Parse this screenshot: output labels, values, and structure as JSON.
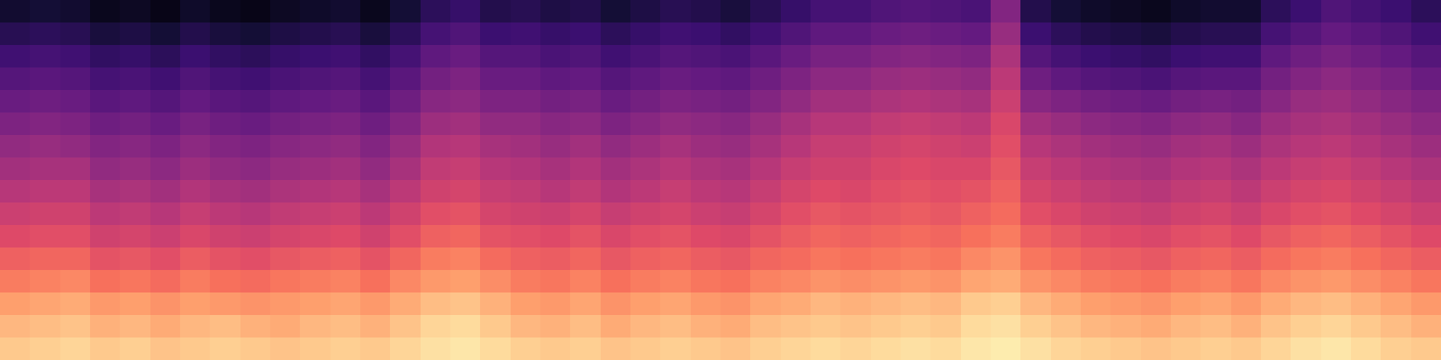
{
  "chart_data": {
    "type": "heatmap",
    "tick_labels": false,
    "zlim": [
      -80,
      0
    ],
    "cells": [
      [
        -9,
        -8,
        -7,
        -9,
        -8,
        -10,
        -9,
        -8,
        -9,
        -10,
        -9,
        -8,
        -9,
        -7,
        -5,
        -4,
        -6,
        -8,
        -9,
        -8,
        -10,
        -9,
        -8,
        -9,
        -10,
        -8,
        -7,
        -6,
        -7,
        -6,
        -5,
        -6,
        -4,
        -3,
        -5,
        -7,
        -8,
        -9,
        -10,
        -9,
        -8,
        -9,
        -7,
        -5,
        -4,
        -6,
        -8,
        -9
      ],
      [
        -12,
        -11,
        -10,
        -13,
        -12,
        -14,
        -12,
        -11,
        -13,
        -14,
        -12,
        -11,
        -13,
        -10,
        -7,
        -6,
        -9,
        -12,
        -13,
        -11,
        -14,
        -12,
        -11,
        -13,
        -14,
        -11,
        -10,
        -9,
        -10,
        -9,
        -8,
        -9,
        -6,
        -5,
        -8,
        -10,
        -12,
        -13,
        -14,
        -12,
        -11,
        -13,
        -10,
        -8,
        -7,
        -9,
        -11,
        -13
      ],
      [
        -16,
        -15,
        -14,
        -17,
        -16,
        -18,
        -16,
        -17,
        -18,
        -17,
        -16,
        -15,
        -17,
        -14,
        -11,
        -10,
        -13,
        -16,
        -17,
        -15,
        -18,
        -16,
        -15,
        -17,
        -18,
        -15,
        -14,
        -12,
        -13,
        -12,
        -11,
        -12,
        -9,
        -8,
        -12,
        -14,
        -16,
        -17,
        -18,
        -16,
        -15,
        -17,
        -14,
        -12,
        -11,
        -13,
        -15,
        -17
      ],
      [
        -22,
        -21,
        -20,
        -24,
        -23,
        -25,
        -22,
        -24,
        -25,
        -23,
        -22,
        -21,
        -24,
        -20,
        -17,
        -16,
        -19,
        -22,
        -23,
        -21,
        -24,
        -22,
        -21,
        -23,
        -24,
        -21,
        -20,
        -18,
        -19,
        -18,
        -17,
        -18,
        -15,
        -14,
        -18,
        -20,
        -22,
        -23,
        -24,
        -22,
        -21,
        -23,
        -20,
        -18,
        -17,
        -19,
        -21,
        -23
      ],
      [
        -27,
        -26,
        -26,
        -30,
        -29,
        -31,
        -28,
        -30,
        -31,
        -29,
        -28,
        -27,
        -30,
        -26,
        -22,
        -21,
        -25,
        -27,
        -28,
        -26,
        -29,
        -27,
        -26,
        -28,
        -29,
        -26,
        -25,
        -23,
        -24,
        -23,
        -22,
        -23,
        -20,
        -18,
        -23,
        -25,
        -27,
        -28,
        -29,
        -27,
        -26,
        -28,
        -25,
        -23,
        -22,
        -24,
        -26,
        -28
      ],
      [
        -32,
        -31,
        -31,
        -35,
        -34,
        -36,
        -33,
        -35,
        -36,
        -34,
        -33,
        -32,
        -35,
        -31,
        -27,
        -26,
        -30,
        -31,
        -32,
        -30,
        -33,
        -31,
        -30,
        -32,
        -33,
        -30,
        -28,
        -26,
        -27,
        -26,
        -25,
        -26,
        -24,
        -22,
        -27,
        -29,
        -31,
        -32,
        -33,
        -31,
        -30,
        -32,
        -29,
        -27,
        -26,
        -28,
        -30,
        -32
      ],
      [
        -36,
        -35,
        -35,
        -39,
        -38,
        -40,
        -37,
        -39,
        -40,
        -38,
        -37,
        -36,
        -39,
        -35,
        -31,
        -30,
        -34,
        -35,
        -36,
        -34,
        -37,
        -35,
        -34,
        -36,
        -37,
        -34,
        -31,
        -29,
        -30,
        -29,
        -28,
        -29,
        -27,
        -25,
        -31,
        -33,
        -35,
        -36,
        -37,
        -35,
        -34,
        -36,
        -33,
        -31,
        -30,
        -32,
        -34,
        -36
      ],
      [
        -40,
        -39,
        -39,
        -43,
        -42,
        -44,
        -41,
        -43,
        -44,
        -42,
        -41,
        -40,
        -43,
        -39,
        -35,
        -34,
        -37,
        -38,
        -40,
        -38,
        -41,
        -39,
        -37,
        -39,
        -40,
        -37,
        -34,
        -32,
        -33,
        -31,
        -30,
        -31,
        -30,
        -27,
        -34,
        -36,
        -38,
        -39,
        -40,
        -38,
        -37,
        -39,
        -36,
        -34,
        -33,
        -35,
        -37,
        -39
      ],
      [
        -44,
        -43,
        -43,
        -47,
        -46,
        -48,
        -45,
        -47,
        -48,
        -46,
        -45,
        -44,
        -47,
        -43,
        -38,
        -37,
        -40,
        -41,
        -43,
        -41,
        -44,
        -42,
        -40,
        -42,
        -43,
        -40,
        -37,
        -35,
        -35,
        -33,
        -32,
        -33,
        -33,
        -29,
        -37,
        -39,
        -41,
        -42,
        -43,
        -41,
        -40,
        -42,
        -39,
        -37,
        -36,
        -38,
        -40,
        -42
      ],
      [
        -47,
        -46,
        -47,
        -50,
        -49,
        -51,
        -48,
        -50,
        -51,
        -49,
        -48,
        -47,
        -50,
        -46,
        -41,
        -40,
        -43,
        -44,
        -46,
        -44,
        -47,
        -45,
        -43,
        -45,
        -46,
        -43,
        -40,
        -37,
        -37,
        -35,
        -34,
        -35,
        -36,
        -31,
        -40,
        -42,
        -44,
        -45,
        -46,
        -44,
        -43,
        -45,
        -42,
        -40,
        -39,
        -41,
        -43,
        -45
      ],
      [
        -51,
        -50,
        -51,
        -54,
        -53,
        -55,
        -52,
        -54,
        -55,
        -53,
        -52,
        -51,
        -54,
        -50,
        -45,
        -44,
        -47,
        -47,
        -49,
        -48,
        -51,
        -49,
        -47,
        -48,
        -49,
        -46,
        -43,
        -40,
        -40,
        -38,
        -37,
        -38,
        -39,
        -33,
        -44,
        -46,
        -48,
        -49,
        -50,
        -48,
        -47,
        -49,
        -45,
        -43,
        -42,
        -44,
        -46,
        -48
      ],
      [
        -55,
        -54,
        -55,
        -58,
        -57,
        -59,
        -56,
        -58,
        -59,
        -57,
        -56,
        -55,
        -58,
        -54,
        -49,
        -48,
        -51,
        -51,
        -53,
        -52,
        -55,
        -53,
        -51,
        -52,
        -53,
        -50,
        -47,
        -44,
        -44,
        -42,
        -41,
        -42,
        -43,
        -36,
        -49,
        -51,
        -53,
        -54,
        -55,
        -53,
        -52,
        -53,
        -49,
        -46,
        -45,
        -47,
        -49,
        -51
      ],
      [
        -59,
        -58,
        -59,
        -62,
        -61,
        -63,
        -60,
        -62,
        -63,
        -61,
        -60,
        -59,
        -62,
        -58,
        -53,
        -51,
        -55,
        -55,
        -57,
        -56,
        -59,
        -57,
        -55,
        -56,
        -57,
        -54,
        -51,
        -48,
        -48,
        -46,
        -45,
        -46,
        -47,
        -39,
        -54,
        -57,
        -59,
        -60,
        -61,
        -59,
        -58,
        -58,
        -53,
        -50,
        -48,
        -50,
        -52,
        -55
      ],
      [
        -63,
        -62,
        -63,
        -66,
        -65,
        -67,
        -64,
        -66,
        -67,
        -65,
        -64,
        -63,
        -66,
        -62,
        -57,
        -55,
        -59,
        -59,
        -61,
        -60,
        -63,
        -61,
        -59,
        -60,
        -61,
        -58,
        -55,
        -52,
        -52,
        -50,
        -49,
        -50,
        -51,
        -42,
        -59,
        -62,
        -64,
        -65,
        -66,
        -64,
        -63,
        -63,
        -57,
        -54,
        -52,
        -54,
        -56,
        -59
      ],
      [
        -68,
        -67,
        -68,
        -71,
        -70,
        -72,
        -69,
        -71,
        -72,
        -70,
        -69,
        -68,
        -71,
        -67,
        -62,
        -60,
        -64,
        -63,
        -65,
        -64,
        -67,
        -65,
        -63,
        -64,
        -66,
        -63,
        -60,
        -57,
        -57,
        -55,
        -54,
        -55,
        -56,
        -46,
        -64,
        -67,
        -69,
        -70,
        -71,
        -69,
        -68,
        -68,
        -62,
        -59,
        -56,
        -58,
        -60,
        -63
      ],
      [
        -73,
        -72,
        -73,
        -76,
        -75,
        -77,
        -74,
        -76,
        -77,
        -75,
        -74,
        -73,
        -76,
        -72,
        -67,
        -65,
        -69,
        -68,
        -70,
        -69,
        -72,
        -70,
        -68,
        -69,
        -71,
        -68,
        -65,
        -62,
        -62,
        -60,
        -59,
        -60,
        -61,
        -50,
        -69,
        -72,
        -74,
        -75,
        -76,
        -74,
        -73,
        -73,
        -67,
        -64,
        -60,
        -62,
        -64,
        -67
      ]
    ]
  }
}
